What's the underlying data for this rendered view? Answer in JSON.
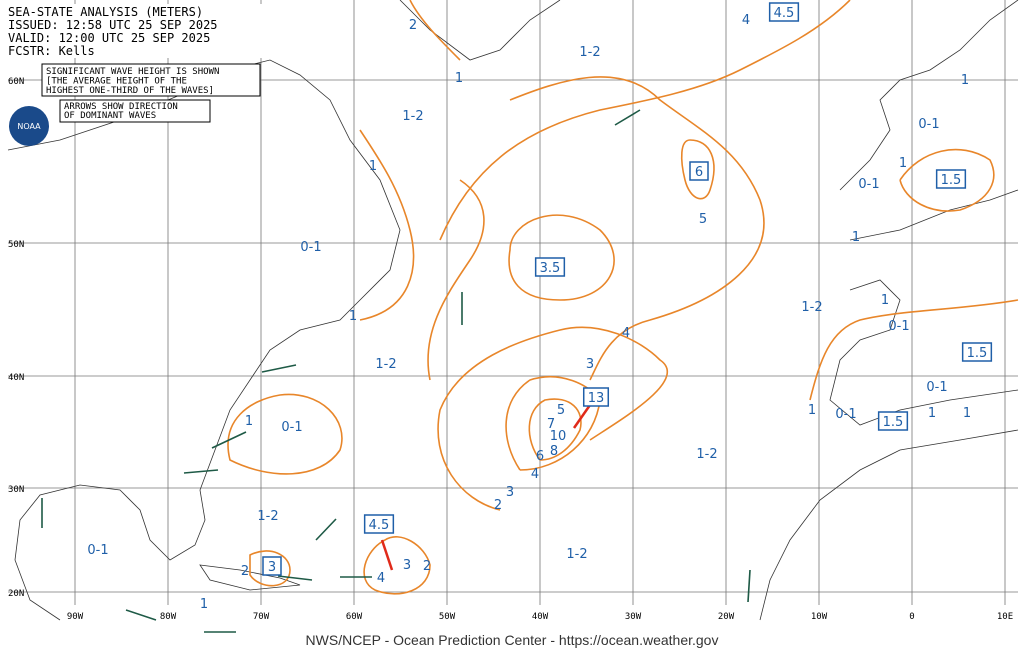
{
  "header": [
    "SEA-STATE ANALYSIS (METERS)",
    "ISSUED: 12:58 UTC 25 SEP 2025",
    "VALID:  12:00 UTC 25 SEP 2025",
    "FCSTR:  Kells"
  ],
  "notes": [
    "SIGNIFICANT WAVE HEIGHT IS SHOWN",
    "[THE AVERAGE HEIGHT OF THE",
    "HIGHEST ONE-THIRD OF THE WAVES]"
  ],
  "arrow_note": [
    "ARROWS SHOW DIRECTION",
    "OF DOMINANT WAVES"
  ],
  "logo": "NOAA",
  "latitudes": [
    "60N",
    "50N",
    "40N",
    "30N",
    "20N"
  ],
  "longitudes": [
    "90W",
    "80W",
    "70W",
    "60W",
    "50W",
    "40W",
    "30W",
    "20W",
    "10W",
    "0",
    "10E"
  ],
  "contour_labels": [
    "1-2",
    "1-2",
    "1-2",
    "1-2",
    "1-2",
    "1-2",
    "1-2",
    "0-1",
    "0-1",
    "0-1",
    "0-1",
    "0-1",
    "0-1",
    "0-1",
    "0-1",
    "2",
    "1",
    "1",
    "1",
    "1",
    "1",
    "1",
    "1",
    "1",
    "1",
    "1",
    "1",
    "1",
    "2",
    "2",
    "3",
    "4",
    "6",
    "8",
    "10",
    "7",
    "5",
    "4",
    "3",
    "5",
    "4",
    "4",
    "3",
    "2"
  ],
  "boxed_labels": [
    "4.5",
    "6",
    "1.5",
    "3.5",
    "13",
    "1.5",
    "1.5",
    "4.5",
    "3"
  ],
  "footer": "NWS/NCEP - Ocean Prediction Center - https://ocean.weather.gov"
}
